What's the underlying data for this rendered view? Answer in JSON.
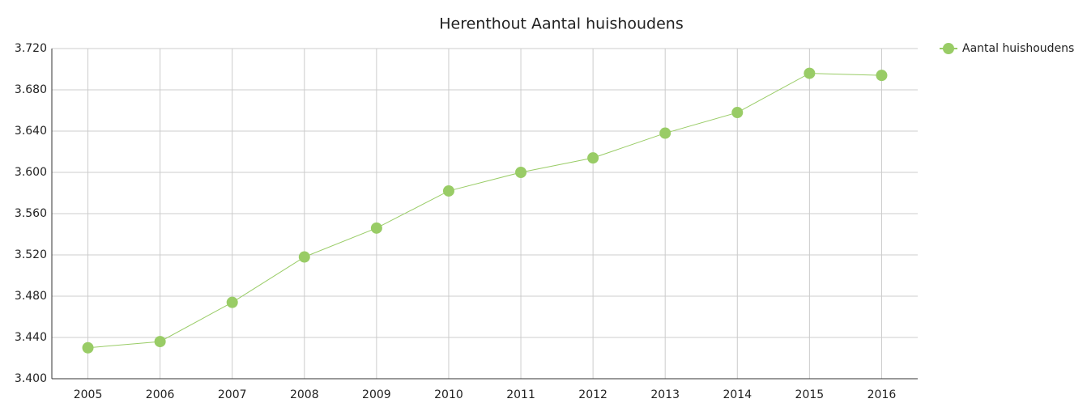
{
  "chart_data": {
    "type": "line",
    "title": "Herenthout  Aantal huishoudens",
    "categories": [
      "2005",
      "2006",
      "2007",
      "2008",
      "2009",
      "2010",
      "2011",
      "2012",
      "2013",
      "2014",
      "2015",
      "2016"
    ],
    "series": [
      {
        "name": "Aantal huishoudens",
        "color": "#99cc66",
        "values": [
          3430,
          3436,
          3474,
          3518,
          3546,
          3582,
          3600,
          3614,
          3638,
          3658,
          3696,
          3694
        ]
      }
    ],
    "ylim": [
      3400,
      3720
    ],
    "yticks": [
      {
        "value": 3400,
        "label": "3.400"
      },
      {
        "value": 3440,
        "label": "3.440"
      },
      {
        "value": 3480,
        "label": "3.480"
      },
      {
        "value": 3520,
        "label": "3.520"
      },
      {
        "value": 3560,
        "label": "3.560"
      },
      {
        "value": 3600,
        "label": "3.600"
      },
      {
        "value": 3640,
        "label": "3.640"
      },
      {
        "value": 3680,
        "label": "3.680"
      },
      {
        "value": 3720,
        "label": "3.720"
      }
    ],
    "grid": true,
    "legend": "top-right"
  }
}
